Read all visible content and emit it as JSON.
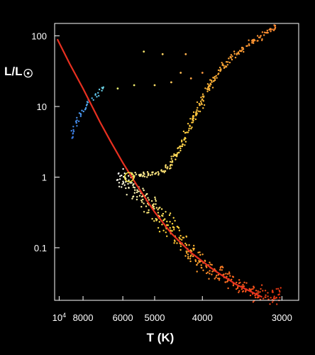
{
  "chart_data": {
    "type": "scatter",
    "title": "",
    "xlabel": "T (K)",
    "ylabel": "L/L",
    "ylabel_symbol": "☉",
    "x_scale": "reciprocal",
    "y_scale": "log",
    "xlim": [
      10500,
      2850
    ],
    "ylim": [
      0.018,
      150
    ],
    "x_ticks": [
      {
        "value": 10000,
        "label": "10",
        "sup": "4"
      },
      {
        "value": 8000,
        "label": "8000"
      },
      {
        "value": 6000,
        "label": "6000"
      },
      {
        "value": 5000,
        "label": "5000"
      },
      {
        "value": 4000,
        "label": "4000"
      },
      {
        "value": 3000,
        "label": "3000"
      }
    ],
    "y_ticks": [
      {
        "value": 100,
        "label": "100"
      },
      {
        "value": 10,
        "label": "10"
      },
      {
        "value": 1,
        "label": "1"
      },
      {
        "value": 0.1,
        "label": "0.1"
      }
    ],
    "grid": false,
    "legend": "none",
    "series": [
      {
        "role": "main-sequence",
        "points": [
          [
            6200,
            1.1
          ],
          [
            5900,
            0.9
          ],
          [
            5600,
            0.7
          ],
          [
            5300,
            0.5
          ],
          [
            5000,
            0.35
          ],
          [
            4800,
            0.25
          ],
          [
            4600,
            0.18
          ],
          [
            4400,
            0.12
          ],
          [
            4200,
            0.085
          ],
          [
            4000,
            0.06
          ],
          [
            3800,
            0.045
          ],
          [
            3600,
            0.035
          ],
          [
            3400,
            0.027
          ],
          [
            3200,
            0.022
          ],
          [
            3000,
            0.019
          ]
        ],
        "colors": [
          "#ffffff",
          "#fff6a0",
          "#ffd83a",
          "#ffa830",
          "#ff6820",
          "#e03010"
        ]
      },
      {
        "role": "red-giant-branch",
        "points": [
          [
            5700,
            1.0
          ],
          [
            5200,
            1.1
          ],
          [
            4800,
            1.2
          ],
          [
            4600,
            1.6
          ],
          [
            4400,
            2.5
          ],
          [
            4300,
            4
          ],
          [
            4150,
            7
          ],
          [
            4050,
            10
          ],
          [
            3950,
            15
          ],
          [
            3850,
            22
          ],
          [
            3700,
            35
          ],
          [
            3550,
            50
          ],
          [
            3400,
            70
          ],
          [
            3200,
            100
          ],
          [
            3050,
            140
          ]
        ],
        "colors": [
          "#fff2a0",
          "#ffd040",
          "#ffb038",
          "#ff8830"
        ]
      },
      {
        "role": "horizontal-branch",
        "points": [
          [
            8900,
            3.5
          ],
          [
            8600,
            5
          ],
          [
            8300,
            7
          ],
          [
            8000,
            9
          ],
          [
            7700,
            11
          ],
          [
            7400,
            13
          ],
          [
            7200,
            15
          ],
          [
            7000,
            17
          ],
          [
            6800,
            19
          ]
        ],
        "colors": [
          "#3a78e0",
          "#4a98f0",
          "#5ac0f0",
          "#70d8e8"
        ]
      },
      {
        "role": "scattered-giants",
        "points": [
          [
            6200,
            18
          ],
          [
            5600,
            20
          ],
          [
            5300,
            60
          ],
          [
            5000,
            20
          ],
          [
            4800,
            55
          ],
          [
            4600,
            22
          ],
          [
            4400,
            30
          ],
          [
            4300,
            55
          ],
          [
            4200,
            25
          ],
          [
            4000,
            30
          ]
        ],
        "colors": [
          "#e8f070",
          "#ffd060",
          "#ff9a40"
        ]
      }
    ],
    "overlay": [
      {
        "type": "line",
        "color": "#e83020",
        "points": [
          [
            10200,
            90
          ],
          [
            9000,
            40
          ],
          [
            8000,
            18
          ],
          [
            7000,
            6
          ],
          [
            6500,
            3.2
          ],
          [
            6000,
            1.6
          ],
          [
            5500,
            0.75
          ],
          [
            5000,
            0.32
          ],
          [
            4600,
            0.16
          ],
          [
            4200,
            0.085
          ],
          [
            3800,
            0.047
          ],
          [
            3500,
            0.03
          ],
          [
            3200,
            0.02
          ]
        ]
      },
      {
        "type": "marker",
        "shape": "circle",
        "color": "#f0e040",
        "point": [
          5770,
          1
        ]
      }
    ]
  }
}
